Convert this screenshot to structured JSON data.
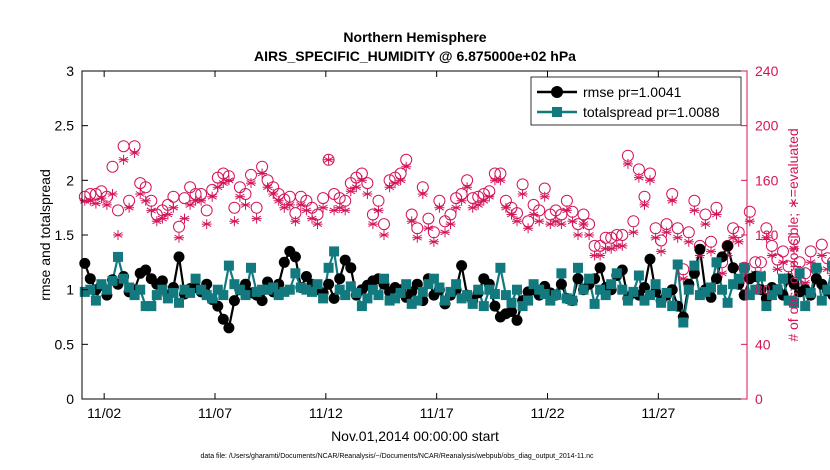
{
  "chart_data": {
    "type": "line",
    "title": "Northern Hemisphere",
    "subtitle": "AIRS_SPECIFIC_HUMIDITY @ 6.875000e+02 hPa",
    "xlabel": "Nov.01,2014 00:00:00 start",
    "ylabel": "rmse and totalspread",
    "ylabel_right": "# of obs: o=possible; ∗=evaluated",
    "footnote": "data file: /Users/gharamti/Documents/NCAR/Reanalysis/~/Documents/NCAR/Reanalysis/webpub/obs_diag_output_2014-11.nc",
    "xlim": [
      1,
      31
    ],
    "ylim": [
      0,
      3
    ],
    "ylim_right": [
      0,
      240
    ],
    "x_ticks": [
      2,
      7,
      12,
      17,
      22,
      27
    ],
    "x_tick_labels": [
      "11/02",
      "11/07",
      "11/12",
      "11/17",
      "11/22",
      "11/27"
    ],
    "y_ticks": [
      0,
      0.5,
      1,
      1.5,
      2,
      2.5,
      3
    ],
    "y_tick_labels": [
      "0",
      "0.5",
      "1",
      "1.5",
      "2",
      "2.5",
      "3"
    ],
    "y_ticks_right": [
      0,
      40,
      80,
      120,
      160,
      200,
      240
    ],
    "y_tick_labels_right": [
      "0",
      "40",
      "80",
      "120",
      "160",
      "200",
      "240"
    ],
    "colors": {
      "rmse": "#000000",
      "spread": "#127a7e",
      "obs": "#d4145a"
    },
    "series": [
      {
        "name": "rmse",
        "legend": "rmse pr=1.0041",
        "x_start": 1.125,
        "x_step": 0.25,
        "values": [
          1.24,
          1.1,
          1.0,
          1.04,
          0.95,
          1.09,
          1.05,
          1.12,
          0.98,
          1.0,
          1.15,
          1.18,
          1.1,
          1.05,
          1.08,
          0.95,
          1.02,
          1.3,
          0.96,
          1.01,
          1.02,
          0.98,
          1.05,
          0.91,
          0.85,
          0.73,
          0.65,
          0.9,
          1.0,
          1.05,
          0.97,
          0.95,
          0.9,
          1.07,
          0.98,
          1.05,
          1.25,
          1.35,
          1.3,
          1.02,
          1.12,
          1.05,
          1.0,
          0.97,
          1.05,
          0.92,
          1.1,
          1.27,
          1.2,
          0.95,
          1.0,
          1.04,
          1.08,
          1.1,
          1.05,
          0.98,
          1.02,
          1.0,
          0.93,
          0.98,
          1.05,
          0.9,
          1.1,
          0.95,
          1.0,
          0.87,
          0.95,
          1.0,
          1.22,
          0.95,
          0.9,
          0.97,
          1.1,
          1.05,
          0.85,
          0.75,
          0.78,
          0.8,
          0.72,
          0.9,
          0.98,
          1.0,
          0.95,
          1.03,
          0.97,
          0.95,
          1.05,
          0.92,
          0.9,
          1.1,
          1.0,
          1.05,
          1.1,
          1.2,
          1.02,
          1.0,
          1.13,
          1.18,
          0.92,
          0.97,
          0.95,
          1.02,
          1.28,
          0.98,
          0.9,
          0.95,
          1.0,
          0.85,
          0.75,
          1.05,
          1.15,
          1.37,
          1.0,
          0.93,
          1.1,
          1.3,
          1.4,
          1.2,
          1.05,
          0.95,
          1.1,
          1.12,
          1.0,
          0.92,
          1.02,
          1.0,
          0.95,
          1.1,
          1.05,
          0.98,
          1.0,
          0.95,
          1.1,
          1.05,
          0.99,
          0.95,
          1.0,
          1.02,
          0.96,
          0.9
        ]
      },
      {
        "name": "totalspread",
        "legend": "totalspread pr=1.0088",
        "x_start": 1.125,
        "x_step": 0.25,
        "values": [
          0.98,
          1.0,
          0.9,
          1.05,
          1.0,
          1.08,
          1.3,
          1.1,
          1.02,
          0.95,
          1.0,
          0.85,
          0.85,
          0.95,
          1.0,
          0.92,
          0.97,
          0.88,
          1.0,
          0.97,
          1.1,
          1.0,
          0.95,
          0.92,
          1.0,
          0.95,
          1.22,
          1.05,
          1.0,
          0.95,
          1.2,
          0.98,
          1.0,
          1.0,
          1.02,
          0.95,
          0.98,
          1.0,
          1.15,
          1.02,
          1.0,
          0.98,
          1.05,
          0.92,
          1.2,
          1.35,
          1.0,
          0.95,
          1.03,
          0.97,
          0.85,
          0.92,
          1.0,
          0.95,
          1.1,
          0.9,
          0.92,
          0.97,
          1.05,
          0.87,
          0.9,
          0.98,
          1.05,
          1.1,
          1.02,
          0.9,
          0.98,
          1.05,
          0.92,
          0.95,
          0.87,
          1.0,
          0.85,
          1.0,
          0.96,
          1.2,
          0.95,
          0.88,
          1.0,
          0.85,
          0.9,
          1.05,
          1.0,
          0.96,
          0.9,
          0.95,
          1.15,
          0.92,
          0.9,
          1.2,
          1.0,
          1.1,
          0.87,
          1.0,
          0.95,
          1.05,
          1.15,
          1.0,
          0.9,
          0.98,
          1.13,
          0.9,
          0.95,
          1.05,
          0.88,
          0.97,
          0.85,
          1.23,
          0.7,
          1.0,
          1.22,
          0.95,
          0.98,
          1.02,
          1.25,
          1.0,
          0.88,
          1.05,
          1.1,
          1.2,
          0.95,
          1.0,
          1.12,
          0.85,
          0.95,
          1.0,
          1.1,
          0.9,
          0.88,
          1.15,
          0.85,
          0.97,
          1.2,
          0.9,
          1.0,
          1.22,
          0.95,
          0.85
        ]
      },
      {
        "name": "obs_possible",
        "marker": "circle",
        "x_start": 1.125,
        "x_step": 0.25,
        "values": [
          148,
          150,
          150,
          152,
          148,
          170,
          138,
          185,
          145,
          185,
          158,
          155,
          145,
          135,
          138,
          142,
          148,
          126,
          147,
          155,
          150,
          150,
          138,
          153,
          162,
          165,
          163,
          140,
          155,
          150,
          164,
          140,
          170,
          160,
          155,
          150,
          146,
          148,
          136,
          148,
          145,
          140,
          135,
          147,
          175,
          150,
          147,
          145,
          158,
          162,
          165,
          158,
          135,
          145,
          128,
          160,
          162,
          165,
          175,
          135,
          125,
          155,
          132,
          122,
          145,
          130,
          135,
          147,
          150,
          160,
          147,
          148,
          150,
          152,
          165,
          165,
          145,
          140,
          136,
          157,
          130,
          142,
          138,
          154,
          135,
          138,
          135,
          145,
          137,
          128,
          135,
          128,
          112,
          112,
          118,
          118,
          120,
          120,
          178,
          130,
          168,
          148,
          165,
          125,
          116,
          128,
          150,
          125,
          95,
          122,
          145,
          112,
          135,
          115,
          140,
          100,
          112,
          125,
          122,
          96,
          137,
          100,
          100,
          125,
          112,
          102,
          108,
          97,
          117,
          100,
          92,
          108,
          95,
          113,
          103,
          100,
          108,
          140,
          130,
          95,
          93,
          80
        ]
      },
      {
        "name": "obs_evaluated",
        "marker": "asterisk",
        "x_start": 1.125,
        "x_step": 0.25,
        "values": [
          145,
          145,
          143,
          147,
          142,
          150,
          120,
          175,
          140,
          180,
          150,
          145,
          138,
          130,
          132,
          135,
          140,
          118,
          132,
          142,
          145,
          145,
          128,
          148,
          155,
          158,
          160,
          130,
          148,
          142,
          158,
          132,
          165,
          155,
          150,
          145,
          140,
          142,
          130,
          142,
          138,
          132,
          128,
          140,
          175,
          138,
          140,
          138,
          152,
          155,
          160,
          150,
          128,
          138,
          120,
          155,
          158,
          160,
          170,
          130,
          118,
          150,
          125,
          115,
          140,
          122,
          128,
          140,
          145,
          155,
          140,
          142,
          145,
          148,
          160,
          160,
          140,
          135,
          130,
          150,
          125,
          135,
          130,
          148,
          128,
          130,
          128,
          138,
          130,
          120,
          128,
          120,
          105,
          105,
          110,
          110,
          112,
          112,
          172,
          122,
          162,
          142,
          160,
          118,
          108,
          122,
          145,
          118,
          88,
          115,
          138,
          105,
          128,
          108,
          135,
          92,
          105,
          118,
          115,
          88,
          130,
          92,
          92,
          118,
          105,
          95,
          100,
          90,
          110,
          92,
          85,
          100,
          88,
          105,
          95,
          92,
          100,
          135,
          125,
          88,
          85,
          80
        ]
      }
    ]
  }
}
